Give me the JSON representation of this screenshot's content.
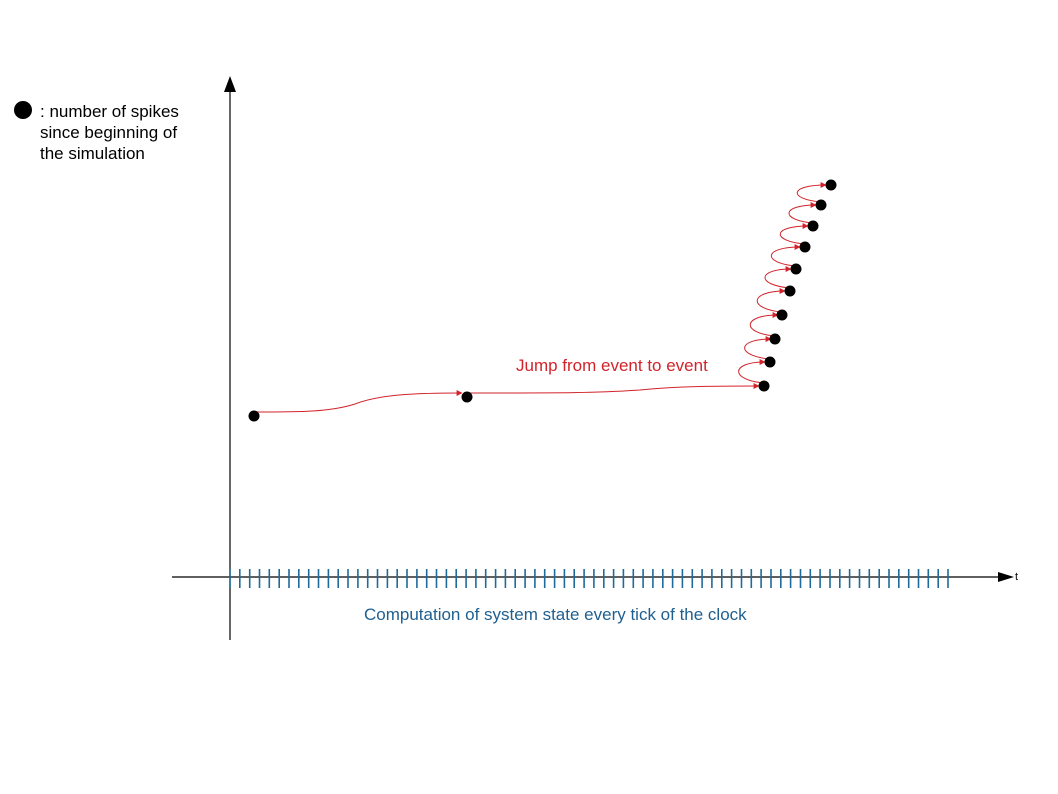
{
  "legend": {
    "marker": "black-dot",
    "lines": [
      ": number of spikes",
      "since beginning of",
      "the simulation"
    ]
  },
  "annotations": {
    "jump_label": "Jump from event to event",
    "tick_label": "Computation of system state every tick of the clock"
  },
  "axes": {
    "x_label": "t"
  },
  "colors": {
    "event_path": "#d2232a",
    "clock_ticks": "#1f6a9a",
    "axis": "#000000",
    "event_dot": "#000000"
  },
  "clock": {
    "tick_count": 74
  },
  "events": {
    "count": 12
  }
}
